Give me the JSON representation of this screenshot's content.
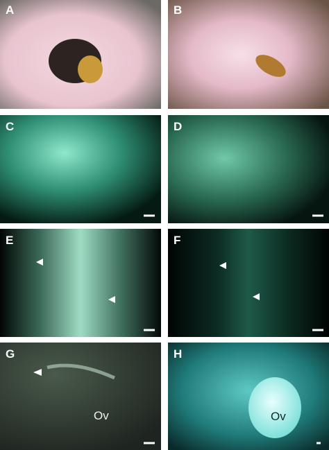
{
  "panels": [
    {
      "label": "A"
    },
    {
      "label": "B"
    },
    {
      "label": "C"
    },
    {
      "label": "D"
    },
    {
      "label": "E"
    },
    {
      "label": "F"
    },
    {
      "label": "G",
      "annotation": "Ov"
    },
    {
      "label": "H",
      "annotation": "Ov"
    }
  ]
}
